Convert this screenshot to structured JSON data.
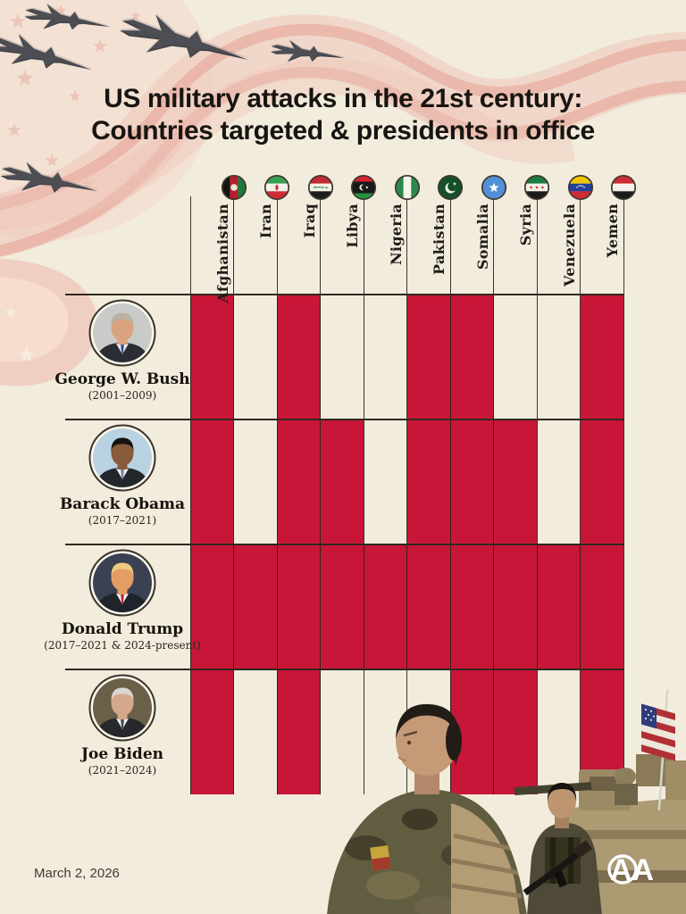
{
  "title": {
    "line1": "US military attacks in the 21st century:",
    "line2": "Countries targeted & presidents in office"
  },
  "chart_data": {
    "type": "heatmap",
    "title": "US military attacks in the 21st century: Countries targeted & presidents in office",
    "categories": [
      "Afghanistan",
      "Iran",
      "Iraq",
      "Libya",
      "Nigeria",
      "Pakistan",
      "Somalia",
      "Syria",
      "Venezuela",
      "Yemen"
    ],
    "flag_icons": [
      "afghanistan-flag-icon",
      "iran-flag-icon",
      "iraq-flag-icon",
      "libya-flag-icon",
      "nigeria-flag-icon",
      "pakistan-flag-icon",
      "somalia-flag-icon",
      "syria-flag-icon",
      "venezuela-flag-icon",
      "yemen-flag-icon"
    ],
    "series": [
      {
        "name": "George W. Bush",
        "term": "(2001–2009)",
        "portrait": "bush",
        "values": [
          1,
          0,
          1,
          0,
          0,
          1,
          1,
          0,
          0,
          1
        ]
      },
      {
        "name": "Barack Obama",
        "term": "(2017–2021)",
        "portrait": "obama",
        "values": [
          1,
          0,
          1,
          1,
          0,
          1,
          1,
          1,
          0,
          1
        ]
      },
      {
        "name": "Donald Trump",
        "term": "(2017–2021 & 2024-present)",
        "portrait": "trump",
        "values": [
          1,
          1,
          1,
          1,
          1,
          1,
          1,
          1,
          1,
          1
        ]
      },
      {
        "name": "Joe Biden",
        "term": "(2021–2024)",
        "portrait": "biden",
        "values": [
          1,
          0,
          1,
          0,
          0,
          0,
          1,
          1,
          0,
          1
        ]
      }
    ],
    "cell_color": "#c81638",
    "value_meaning": "1 = country attacked while that president was in office (red cell)",
    "grid": true,
    "legend_position": "none"
  },
  "footer": {
    "date_label": "March 2, 2026",
    "agency_logo": "AA"
  },
  "colors": {
    "background": "#f2ecdd",
    "cell_red": "#c81638",
    "grid_line": "#2f2920",
    "title_text": "#181511",
    "ribbon_pink": "#eec4b6"
  }
}
